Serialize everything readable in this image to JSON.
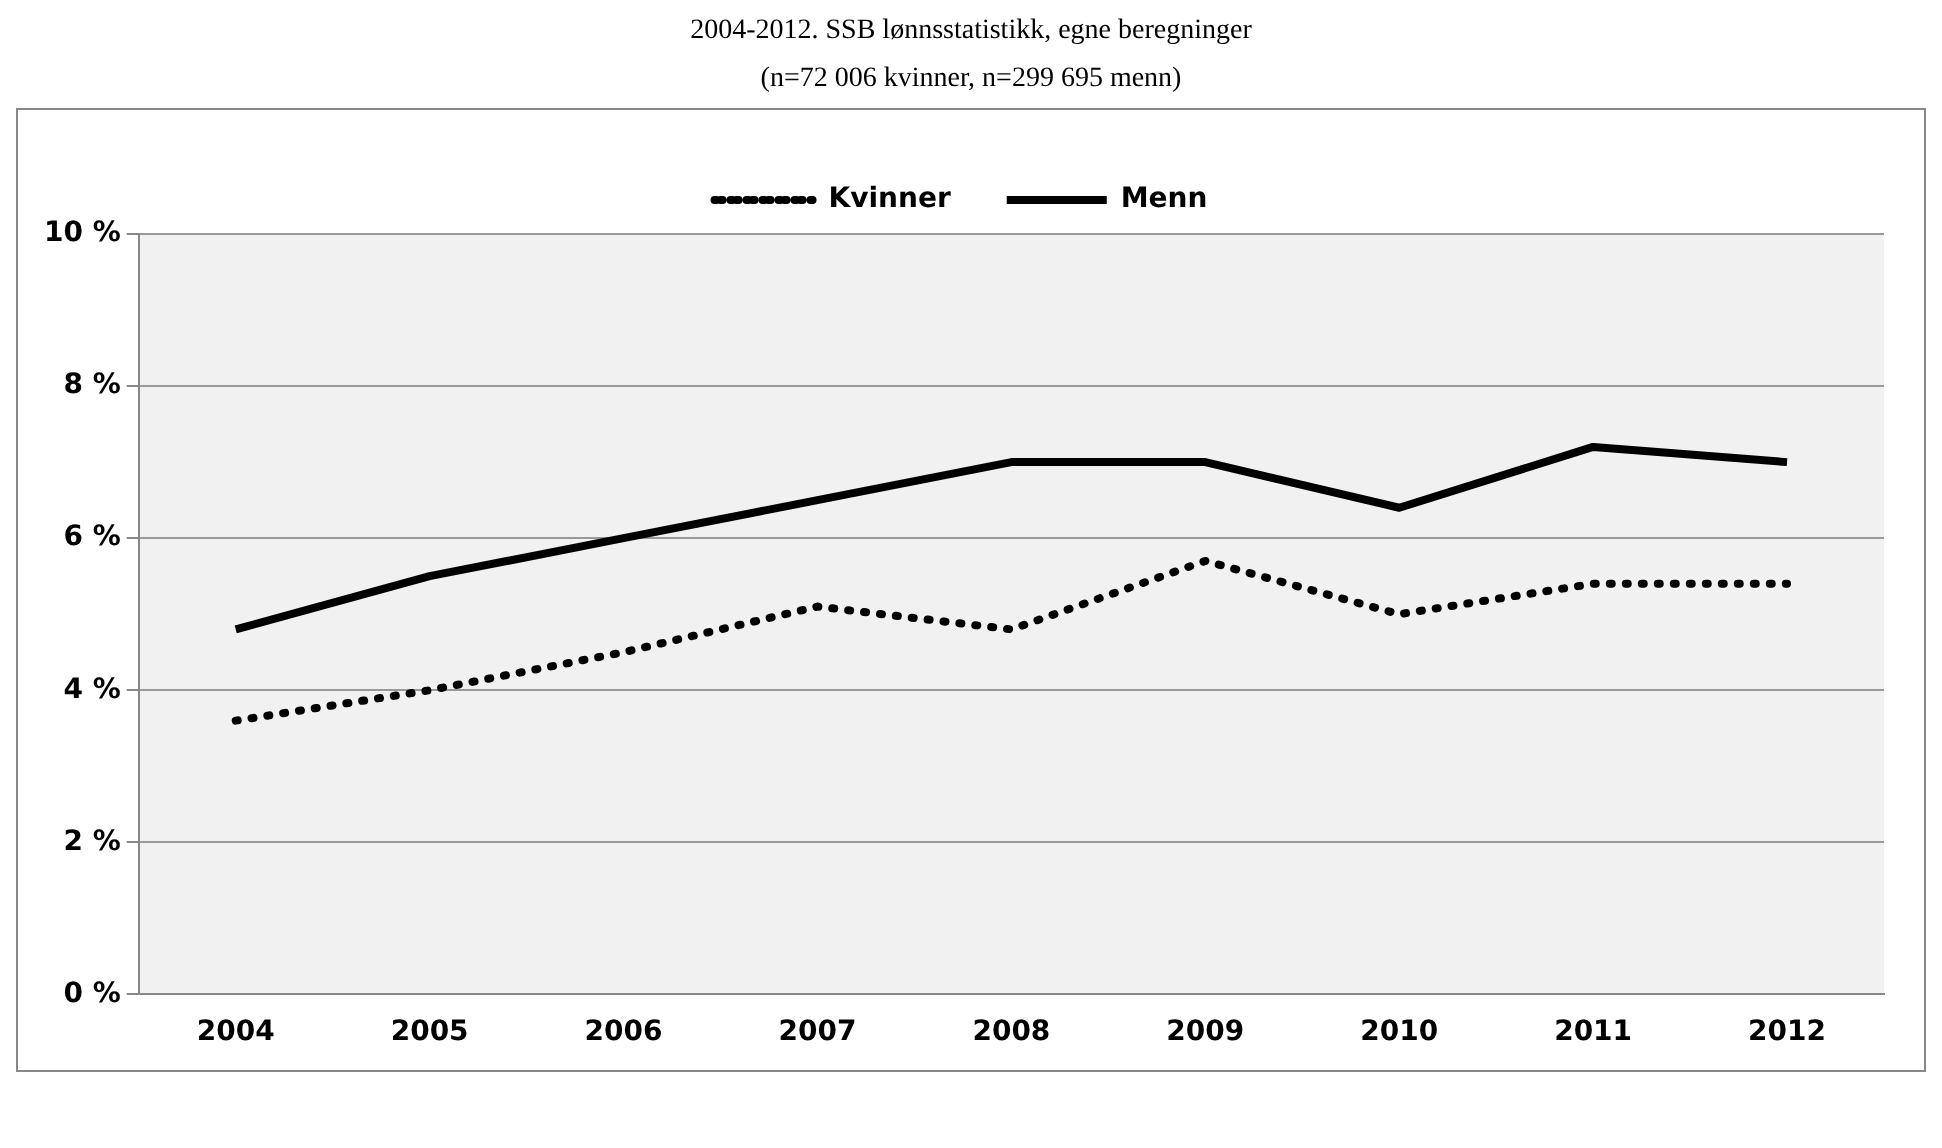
{
  "chart_data": {
    "type": "line",
    "title": "2004-2012. SSB lønnsstatistikk, egne beregninger",
    "subtitle": "(n=72 006 kvinner, n=299 695 menn)",
    "categories": [
      "2004",
      "2005",
      "2006",
      "2007",
      "2008",
      "2009",
      "2010",
      "2011",
      "2012"
    ],
    "series": [
      {
        "name": "Kvinner",
        "color": "#000000",
        "line_style": "dotted",
        "values": [
          3.6,
          4.0,
          4.5,
          5.1,
          4.8,
          5.7,
          5.0,
          5.4,
          5.4
        ]
      },
      {
        "name": "Menn",
        "color": "#000000",
        "line_style": "solid",
        "values": [
          4.8,
          5.5,
          6.0,
          6.5,
          7.0,
          7.0,
          6.4,
          7.2,
          7.0
        ]
      }
    ],
    "ylim": [
      0,
      10
    ],
    "yticks": [
      {
        "value": 0,
        "label": "0 %"
      },
      {
        "value": 2,
        "label": "2 %"
      },
      {
        "value": 4,
        "label": "4 %"
      },
      {
        "value": 6,
        "label": "6 %"
      },
      {
        "value": 8,
        "label": "8 %"
      },
      {
        "value": 10,
        "label": "10 %"
      }
    ],
    "grid": "y",
    "legend": "top",
    "marker": "none"
  }
}
